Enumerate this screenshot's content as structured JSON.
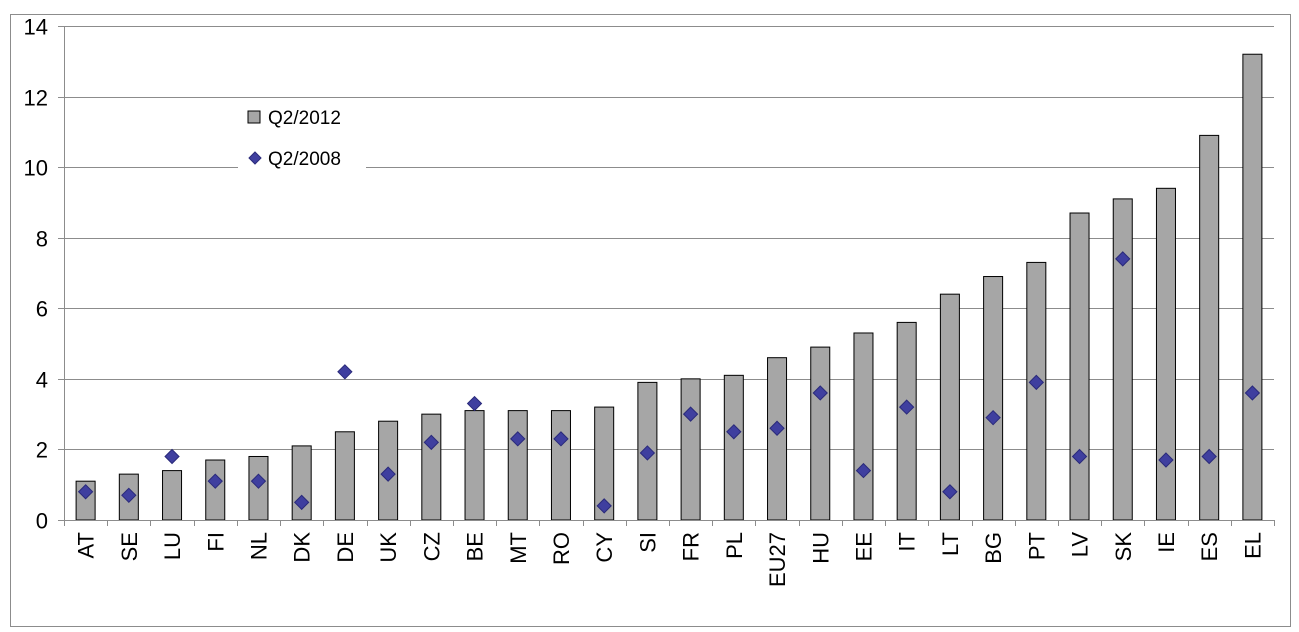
{
  "chart_data": {
    "type": "bar",
    "title": "",
    "xlabel": "",
    "ylabel": "",
    "ylim": [
      0,
      14
    ],
    "yticks": [
      0,
      2,
      4,
      6,
      8,
      10,
      12,
      14
    ],
    "grid": true,
    "legend_position": "top-left",
    "categories": [
      "AT",
      "SE",
      "LU",
      "FI",
      "NL",
      "DK",
      "DE",
      "UK",
      "CZ",
      "BE",
      "MT",
      "RO",
      "CY",
      "SI",
      "FR",
      "PL",
      "EU27",
      "HU",
      "EE",
      "IT",
      "LT",
      "BG",
      "PT",
      "LV",
      "SK",
      "IE",
      "ES",
      "EL"
    ],
    "series": [
      {
        "name": "Q2/2012",
        "type": "bar",
        "color": "#a6a6a6",
        "values": [
          1.1,
          1.3,
          1.4,
          1.7,
          1.8,
          2.1,
          2.5,
          2.8,
          3.0,
          3.1,
          3.1,
          3.1,
          3.2,
          3.9,
          4.0,
          4.1,
          4.6,
          4.9,
          5.3,
          5.6,
          6.4,
          6.9,
          7.3,
          8.7,
          9.1,
          9.4,
          10.9,
          13.2
        ]
      },
      {
        "name": "Q2/2008",
        "type": "scatter",
        "marker": "diamond",
        "color": "#3f3f9f",
        "values": [
          0.8,
          0.7,
          1.8,
          1.1,
          1.1,
          0.5,
          4.2,
          1.3,
          2.2,
          3.3,
          2.3,
          2.3,
          0.4,
          1.9,
          3.0,
          2.5,
          2.6,
          3.6,
          1.4,
          3.2,
          0.8,
          2.9,
          3.9,
          1.8,
          7.4,
          1.7,
          1.8,
          3.6
        ]
      }
    ]
  }
}
